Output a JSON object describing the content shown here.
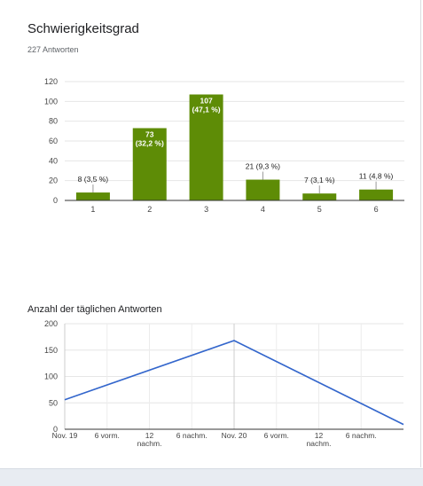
{
  "question": {
    "title": "Schwierigkeitsgrad",
    "response_count": "227 Antworten"
  },
  "daily_title": "Anzahl der täglichen Antworten",
  "colors": {
    "bar": "#5e8c06",
    "line": "#3366cc"
  },
  "chart_data": [
    {
      "type": "bar",
      "categories": [
        "1",
        "2",
        "3",
        "4",
        "5",
        "6"
      ],
      "values": [
        8,
        73,
        107,
        21,
        7,
        11
      ],
      "labels": [
        [
          "8 (3,5 %)"
        ],
        [
          "73",
          "(32,2 %)"
        ],
        [
          "107",
          "(47,1 %)"
        ],
        [
          "21 (9,3 %)"
        ],
        [
          "7 (3,1 %)"
        ],
        [
          "11 (4,8 %)"
        ]
      ],
      "label_inside": [
        false,
        true,
        true,
        false,
        false,
        false
      ],
      "ylim": [
        0,
        120
      ],
      "yticks": [
        "0",
        "20",
        "40",
        "60",
        "80",
        "100",
        "120"
      ],
      "title": "",
      "xlabel": "",
      "ylabel": "",
      "grid": true
    },
    {
      "type": "line",
      "title": "Anzahl der täglichen Antworten",
      "x": [
        "2019-11-19T00:00",
        "2019-11-20T00:00",
        "2019-11-21T00:00"
      ],
      "y": [
        56,
        168,
        9
      ],
      "xticks": [
        [
          "Nov. 19"
        ],
        [
          "6 vorm."
        ],
        [
          "12",
          "nachm."
        ],
        [
          "6 nachm."
        ],
        [
          "Nov. 20"
        ],
        [
          "6 vorm."
        ],
        [
          "12",
          "nachm."
        ],
        [
          "6 nachm."
        ]
      ],
      "ylim": [
        0,
        200
      ],
      "yticks": [
        "0",
        "50",
        "100",
        "150",
        "200"
      ],
      "grid": true
    }
  ]
}
